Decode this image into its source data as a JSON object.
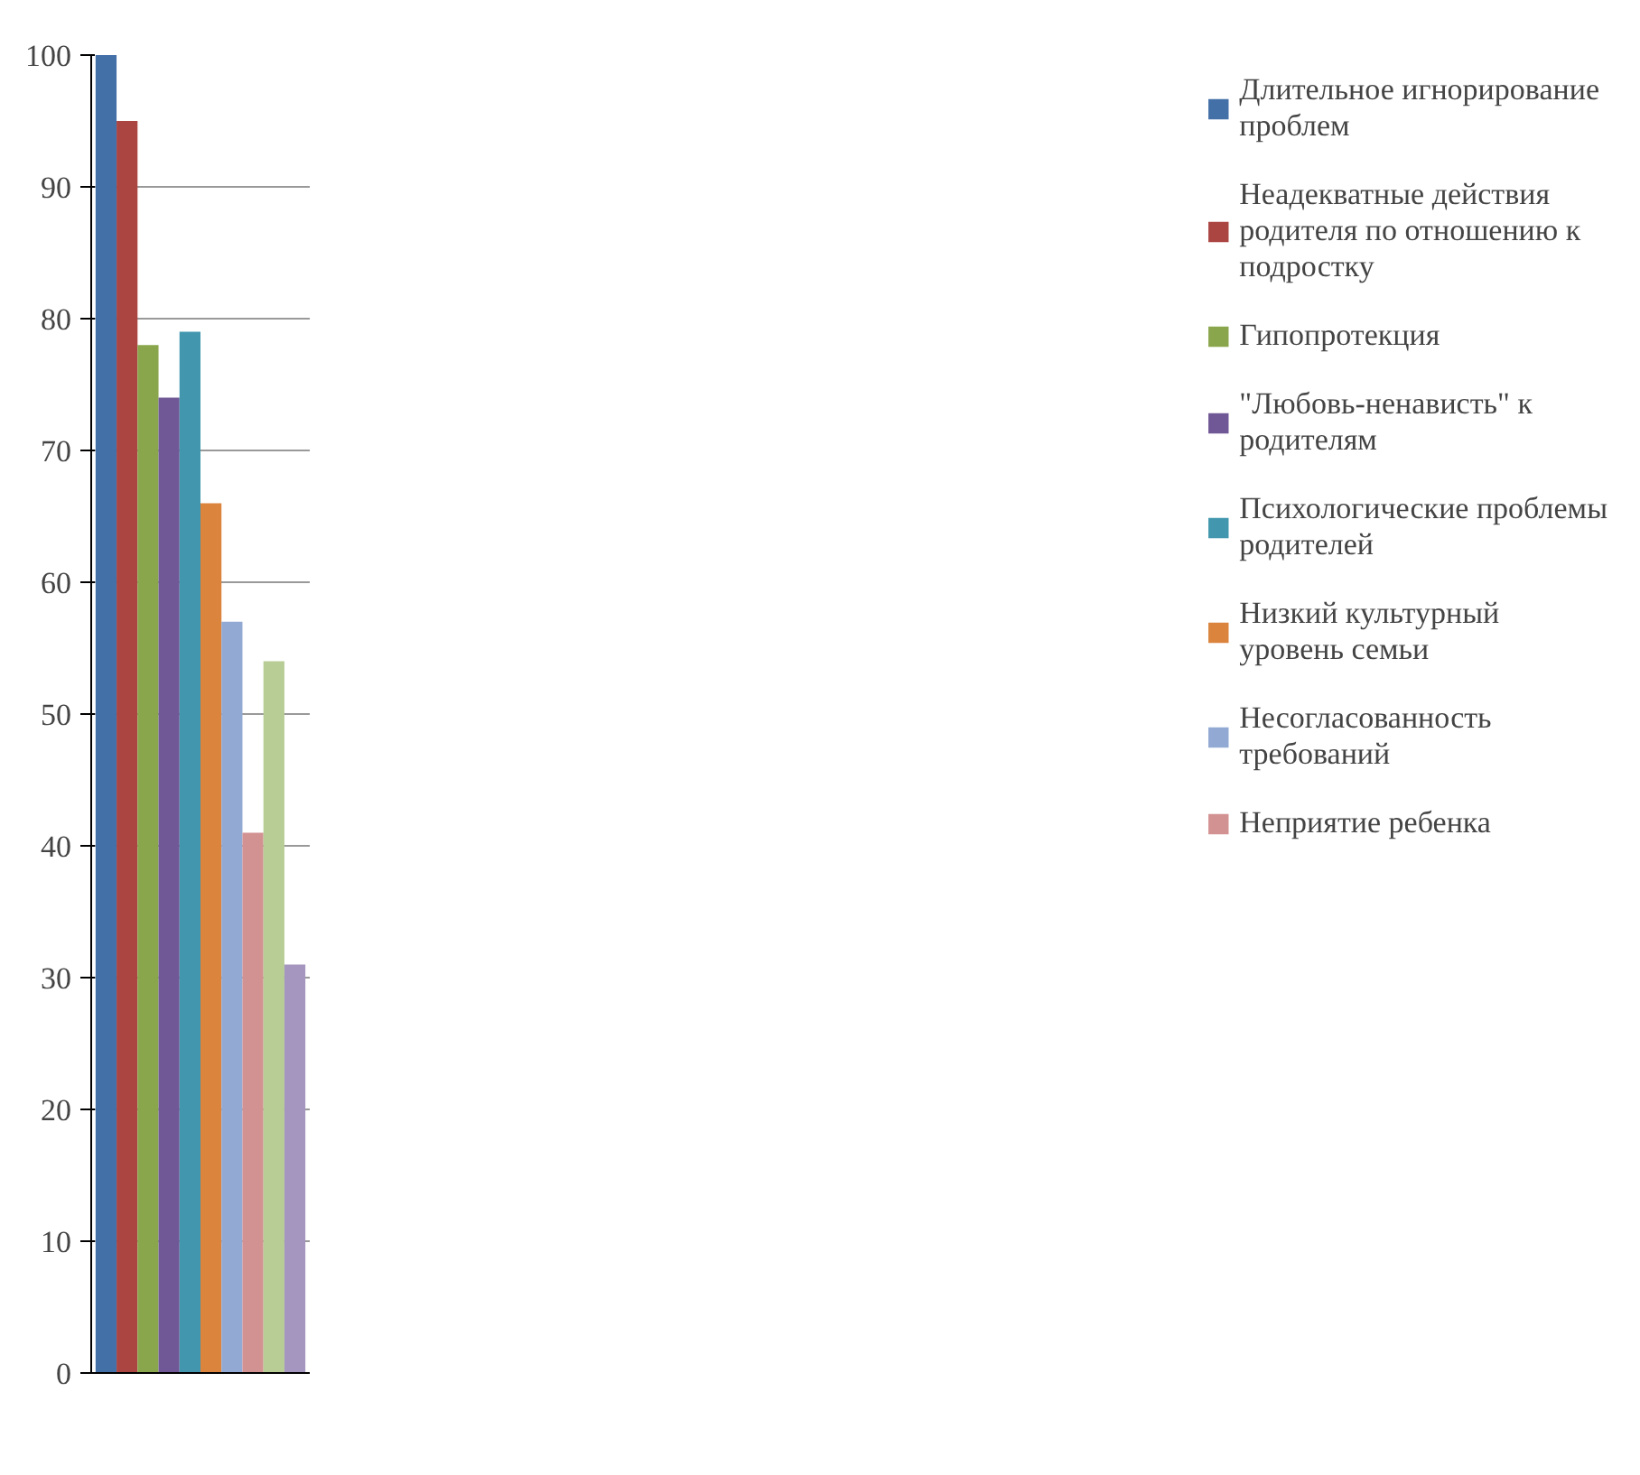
{
  "chart_data": {
    "type": "bar",
    "categories": [
      null
    ],
    "series": [
      {
        "name": "Длительное игнорирование проблем",
        "color": "#4470a8",
        "values": [
          100
        ]
      },
      {
        "name": "Неадекватные действия родителя по отношению к подростку",
        "color": "#ab4542",
        "values": [
          95
        ]
      },
      {
        "name": "Гипопротекция",
        "color": "#8aa64c",
        "values": [
          78
        ]
      },
      {
        "name": "\"Любовь-ненависть\" к родителям",
        "color": "#705795",
        "values": [
          74
        ]
      },
      {
        "name": "Психологические проблемы родителей",
        "color": "#4297ae",
        "values": [
          79
        ]
      },
      {
        "name": "Низкий культурный уровень семьи",
        "color": "#db843d",
        "values": [
          66
        ]
      },
      {
        "name": "Несогласованность требований",
        "color": "#91a9d3",
        "values": [
          57
        ]
      },
      {
        "name": "Неприятие ребенка",
        "color": "#d39292",
        "values": [
          41
        ]
      },
      {
        "color": "#b7cd95",
        "values": [
          54
        ]
      },
      {
        "color": "#a596c0",
        "values": [
          31
        ]
      }
    ],
    "ylim": [
      0,
      100
    ],
    "yticks": [
      0,
      10,
      20,
      30,
      40,
      50,
      60,
      70,
      80,
      90,
      100
    ],
    "grid": "y",
    "legend": "right"
  }
}
